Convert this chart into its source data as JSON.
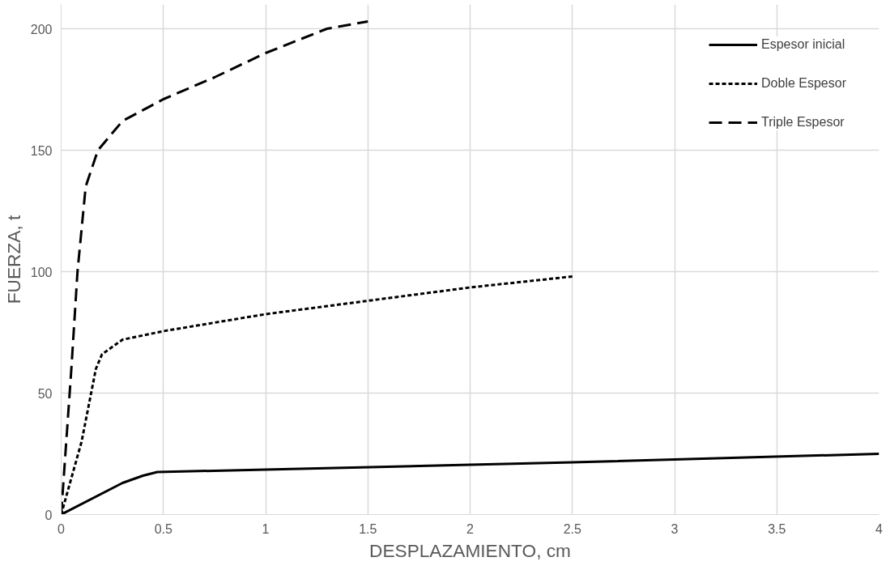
{
  "chart_data": {
    "type": "line",
    "xlabel": "DESPLAZAMIENTO, cm",
    "ylabel": "FUERZA, t",
    "xlim": [
      0,
      4
    ],
    "xticks": [
      0,
      0.5,
      1,
      1.5,
      2,
      2.5,
      3,
      3.5,
      4
    ],
    "ylim": [
      0,
      210
    ],
    "yticks": [
      0,
      50,
      100,
      150,
      200
    ],
    "grid": true,
    "legend": "top right",
    "marker": "none",
    "series": [
      {
        "name": "Espesor inicial",
        "color": "#000000",
        "line_style": "solid",
        "x": [
          0,
          0.3,
          0.4,
          0.47,
          1,
          2,
          2.5,
          4
        ],
        "values": [
          0,
          13,
          16,
          17.5,
          18.5,
          20.5,
          21.5,
          25
        ]
      },
      {
        "name": "Doble Espesor",
        "color": "#000000",
        "line_style": "dotted",
        "x": [
          0,
          0.1,
          0.17,
          0.2,
          0.3,
          0.5,
          1,
          1.5,
          2,
          2.5
        ],
        "values": [
          0,
          30,
          60,
          66,
          72,
          75.5,
          82.5,
          88,
          93.5,
          98
        ]
      },
      {
        "name": "Triple Espesor",
        "color": "#000000",
        "line_style": "dashed",
        "x": [
          0,
          0.05,
          0.08,
          0.12,
          0.18,
          0.3,
          0.5,
          0.75,
          1,
          1.3,
          1.5
        ],
        "values": [
          0,
          60,
          100,
          135,
          150,
          162,
          171,
          180,
          190,
          200,
          203
        ]
      }
    ]
  }
}
